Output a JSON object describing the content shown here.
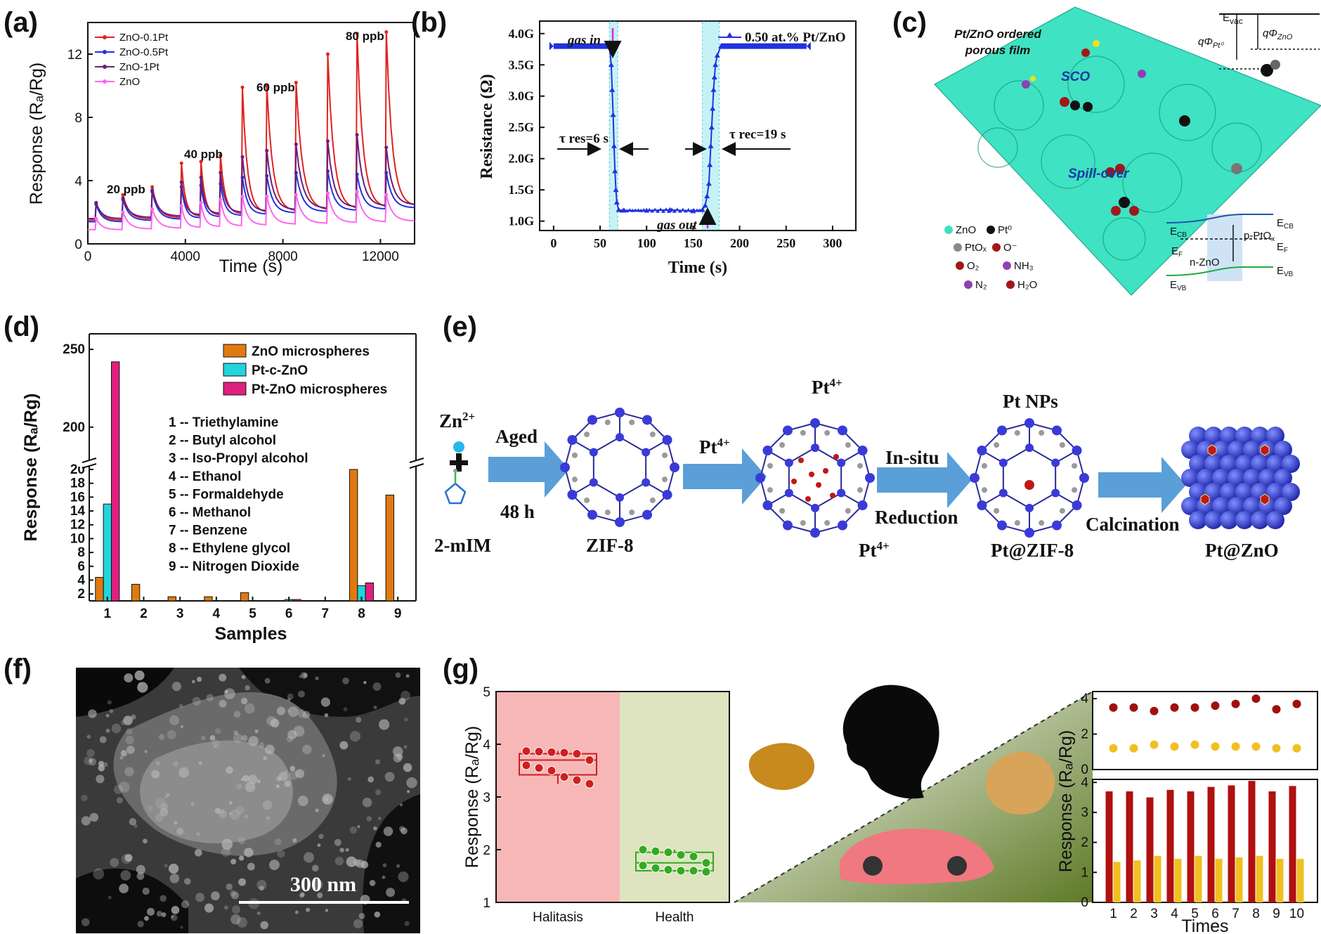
{
  "panel_labels": [
    "(a)",
    "(b)",
    "(c)",
    "(d)",
    "(e)",
    "(f)",
    "(g)"
  ],
  "colors": {
    "red": "#e0231f",
    "blue": "#2233dd",
    "purple": "#6b1f7a",
    "pink": "#ff66ee",
    "orange": "#e07a10",
    "cyan": "#22d4dc",
    "magenta": "#e0207f",
    "teal": "#3ee0c0",
    "darkred": "#a01010",
    "yellow": "#f0c020"
  },
  "chart_data": [
    {
      "panel": "(a)",
      "type": "line",
      "xlabel": "Time (s)",
      "ylabel": "Response (Rₐ/Rɡ)",
      "xlim": [
        0,
        13400
      ],
      "ylim": [
        0,
        14
      ],
      "xticks": [
        0,
        4000,
        8000,
        12000
      ],
      "yticks": [
        0,
        4,
        8,
        12
      ],
      "legend_position": "top-left",
      "pulse_times": [
        300,
        1400,
        2600,
        3800,
        4600,
        5400,
        6300,
        7300,
        8500,
        9800,
        11000,
        12200
      ],
      "series": [
        {
          "name": "ZnO-0.1Pt",
          "color": "#e0231f",
          "peaks": [
            2.6,
            3.1,
            3.6,
            5.1,
            5.2,
            5.6,
            9.9,
            10.0,
            10.2,
            12.0,
            13.3,
            13.4
          ]
        },
        {
          "name": "ZnO-0.5Pt",
          "color": "#2233dd",
          "peaks": [
            2.5,
            2.8,
            3.3,
            3.6,
            3.7,
            3.8,
            4.2,
            4.3,
            4.5,
            4.6,
            4.4,
            4.5
          ]
        },
        {
          "name": "ZnO-1Pt",
          "color": "#6b1f7a",
          "peaks": [
            2.6,
            2.9,
            3.4,
            3.9,
            4.2,
            4.5,
            5.5,
            5.9,
            6.3,
            6.5,
            6.9,
            6.1
          ]
        },
        {
          "name": "ZnO",
          "color": "#ff66ee",
          "peaks": [
            1.6,
            2.0,
            2.2,
            2.4,
            2.6,
            2.8,
            3.0,
            3.0,
            3.1,
            3.2,
            3.3,
            3.1
          ]
        }
      ],
      "annotations": [
        "20 ppb",
        "40 ppb",
        "60 ppb",
        "80 ppb"
      ]
    },
    {
      "panel": "(b)",
      "type": "line",
      "xlabel": "Time (s)",
      "ylabel": "Resistance (Ω)",
      "xlim": [
        -15,
        325
      ],
      "ylim": [
        0.85,
        4.2
      ],
      "xticks": [
        0,
        50,
        100,
        150,
        200,
        250,
        300
      ],
      "yticks": [
        1.0,
        1.5,
        2.0,
        2.5,
        3.0,
        3.5,
        4.0
      ],
      "ytick_labels": [
        "1.0G",
        "1.5G",
        "2.0G",
        "2.5G",
        "3.0G",
        "3.5G",
        "4.0G"
      ],
      "series": [
        {
          "name": "0.50 at.% Pt/ZnO",
          "color": "#2233dd",
          "x": [
            0,
            60,
            62,
            63,
            64,
            65,
            66,
            67,
            68,
            70,
            75,
            100,
            125,
            150,
            160,
            163,
            165,
            167,
            168,
            169,
            170,
            171,
            172,
            173,
            174,
            176,
            180,
            200,
            272
          ],
          "y": [
            3.8,
            3.8,
            3.5,
            3.1,
            2.7,
            2.2,
            1.8,
            1.5,
            1.3,
            1.18,
            1.17,
            1.17,
            1.18,
            1.16,
            1.18,
            1.25,
            1.4,
            1.6,
            1.9,
            2.2,
            2.5,
            2.8,
            3.1,
            3.3,
            3.5,
            3.65,
            3.8,
            3.8,
            3.8
          ]
        }
      ],
      "annotations": {
        "gas_in": "gas in",
        "gas_out": "gas out",
        "tau_res": "τ res=6 s",
        "tau_rec": "τ rec=19 s",
        "legend": "0.50 at.% Pt/ZnO"
      }
    },
    {
      "panel": "(d)",
      "type": "bar",
      "xlabel": "Samples",
      "ylabel": "Response (Rₐ/Rɡ)",
      "categories": [
        "1",
        "2",
        "3",
        "4",
        "5",
        "6",
        "7",
        "8",
        "9"
      ],
      "y_breaks": {
        "lower": [
          1,
          20
        ],
        "upper": [
          180,
          260
        ]
      },
      "yticks_lower": [
        2,
        4,
        6,
        8,
        10,
        12,
        14,
        16,
        18,
        20
      ],
      "yticks_upper": [
        200,
        250
      ],
      "series": [
        {
          "name": "ZnO microspheres",
          "color": "#e07a10",
          "values": [
            4.4,
            3.4,
            1.6,
            1.6,
            2.2,
            1.0,
            0.3,
            20.0,
            16.3
          ]
        },
        {
          "name": "Pt-c-ZnO",
          "color": "#22d4dc",
          "values": [
            15.0,
            0.5,
            0.4,
            0.8,
            1.0,
            1.2,
            0.3,
            3.2,
            0.7
          ]
        },
        {
          "name": "Pt-ZnO microspheres",
          "color": "#e0207f",
          "values": [
            242.0,
            0.5,
            0.4,
            0.6,
            0.8,
            1.2,
            0.3,
            3.6,
            0.7
          ]
        }
      ],
      "sample_list": [
        "1 -- Triethylamine",
        "2 -- Butyl alcohol",
        "3 -- Iso-Propyl alcohol",
        "4 -- Ethanol",
        "5 -- Formaldehyde",
        "6 -- Methanol",
        "7 -- Benzene",
        "8 -- Ethylene glycol",
        "9 -- Nitrogen Dioxide"
      ]
    },
    {
      "panel": "(g-box)",
      "type": "scatter",
      "ylabel": "Response (Rₐ/Rɡ)",
      "ylim": [
        1,
        5
      ],
      "yticks": [
        1,
        2,
        3,
        4,
        5
      ],
      "categories": [
        "Halitasis",
        "Health"
      ],
      "series": [
        {
          "name": "Halitasis",
          "color": "#cc2020",
          "values": [
            3.87,
            3.86,
            3.85,
            3.84,
            3.82,
            3.7,
            3.6,
            3.55,
            3.5,
            3.38,
            3.32,
            3.25
          ],
          "box": {
            "q1": 3.42,
            "median": 3.7,
            "q3": 3.82,
            "min": 3.25,
            "max": 3.87
          }
        },
        {
          "name": "Health",
          "color": "#33aa22",
          "values": [
            2.0,
            1.97,
            1.95,
            1.9,
            1.87,
            1.75,
            1.7,
            1.65,
            1.62,
            1.6,
            1.6,
            1.58
          ],
          "box": {
            "q1": 1.6,
            "median": 1.75,
            "q3": 1.95,
            "min": 1.58,
            "max": 2.0
          }
        }
      ]
    },
    {
      "panel": "(g-top)",
      "type": "scatter",
      "ylabel": "Response (Rₐ/Rɡ)",
      "ylim": [
        0,
        4.4
      ],
      "yticks": [
        0,
        2,
        4
      ],
      "x": [
        1,
        2,
        3,
        4,
        5,
        6,
        7,
        8,
        9,
        10
      ],
      "series": [
        {
          "color": "#a01010",
          "values": [
            3.5,
            3.5,
            3.3,
            3.5,
            3.5,
            3.6,
            3.7,
            4.0,
            3.4,
            3.7
          ]
        },
        {
          "color": "#f0c020",
          "values": [
            1.2,
            1.2,
            1.4,
            1.3,
            1.4,
            1.3,
            1.3,
            1.3,
            1.2,
            1.2
          ]
        }
      ]
    },
    {
      "panel": "(g-bottom)",
      "type": "bar",
      "xlabel": "Times",
      "ylabel": "Response (Rₐ/Rɡ)",
      "ylim": [
        0,
        4.1
      ],
      "yticks": [
        0,
        1,
        2,
        3,
        4
      ],
      "categories": [
        "1",
        "2",
        "3",
        "4",
        "5",
        "6",
        "7",
        "8",
        "9",
        "10"
      ],
      "series": [
        {
          "color": "#b01010",
          "values": [
            3.7,
            3.7,
            3.5,
            3.75,
            3.7,
            3.85,
            3.9,
            4.05,
            3.7,
            3.88
          ]
        },
        {
          "color": "#f0c020",
          "values": [
            1.35,
            1.4,
            1.55,
            1.45,
            1.55,
            1.45,
            1.5,
            1.55,
            1.45,
            1.45
          ]
        }
      ]
    }
  ],
  "panel_c": {
    "title_l1": "Pt/ZnO ordered",
    "title_l2": "porous film",
    "labels": {
      "sco": "SCO",
      "spill": "Spill-over",
      "evac": "E",
      "evac_sub": "vac",
      "ecb": "E",
      "ecb_sub": "CB",
      "ef": "E",
      "ef_sub": "F",
      "evb": "E",
      "evb_sub": "VB",
      "ntype": "n-ZnO",
      "ptype": "p-PtO",
      "ptype_sub": "x",
      "phi_pt": "qΦ",
      "phi_pt_sub": "Pt⁰",
      "phi_zno": "qΦ",
      "phi_zno_sub": "ZnO"
    },
    "legend": [
      {
        "label": "ZnO",
        "color": "#3ee0c0"
      },
      {
        "label": "Pt⁰",
        "color": "#111111"
      },
      {
        "label": "PtOₓ",
        "color": "#888888"
      },
      {
        "label": "O⁻",
        "color": "#a01818"
      },
      {
        "label": "O₂",
        "color": "#a01818"
      },
      {
        "label": "NH₃",
        "color": "#9040b0"
      },
      {
        "label": "N₂",
        "color": "#9040b0"
      },
      {
        "label": "H₂O",
        "color": "#a01818"
      }
    ]
  },
  "panel_e": {
    "zn": "Zn",
    "zn_sup": "2+",
    "aged": "Aged",
    "h48": "48 h",
    "mim": "2-mIM",
    "zif8": "ZIF-8",
    "pt4_arrow": "Pt",
    "pt4_sup": "4+",
    "pt4_top": "Pt",
    "pt4_bottom": "Pt",
    "insitu": "In-situ",
    "reduction": "Reduction",
    "ptnps": "Pt NPs",
    "ptzif": "Pt@ZIF-8",
    "calc": "Calcination",
    "ptzno": "Pt@ZnO"
  },
  "panel_f": {
    "scalebar": "300 nm"
  }
}
